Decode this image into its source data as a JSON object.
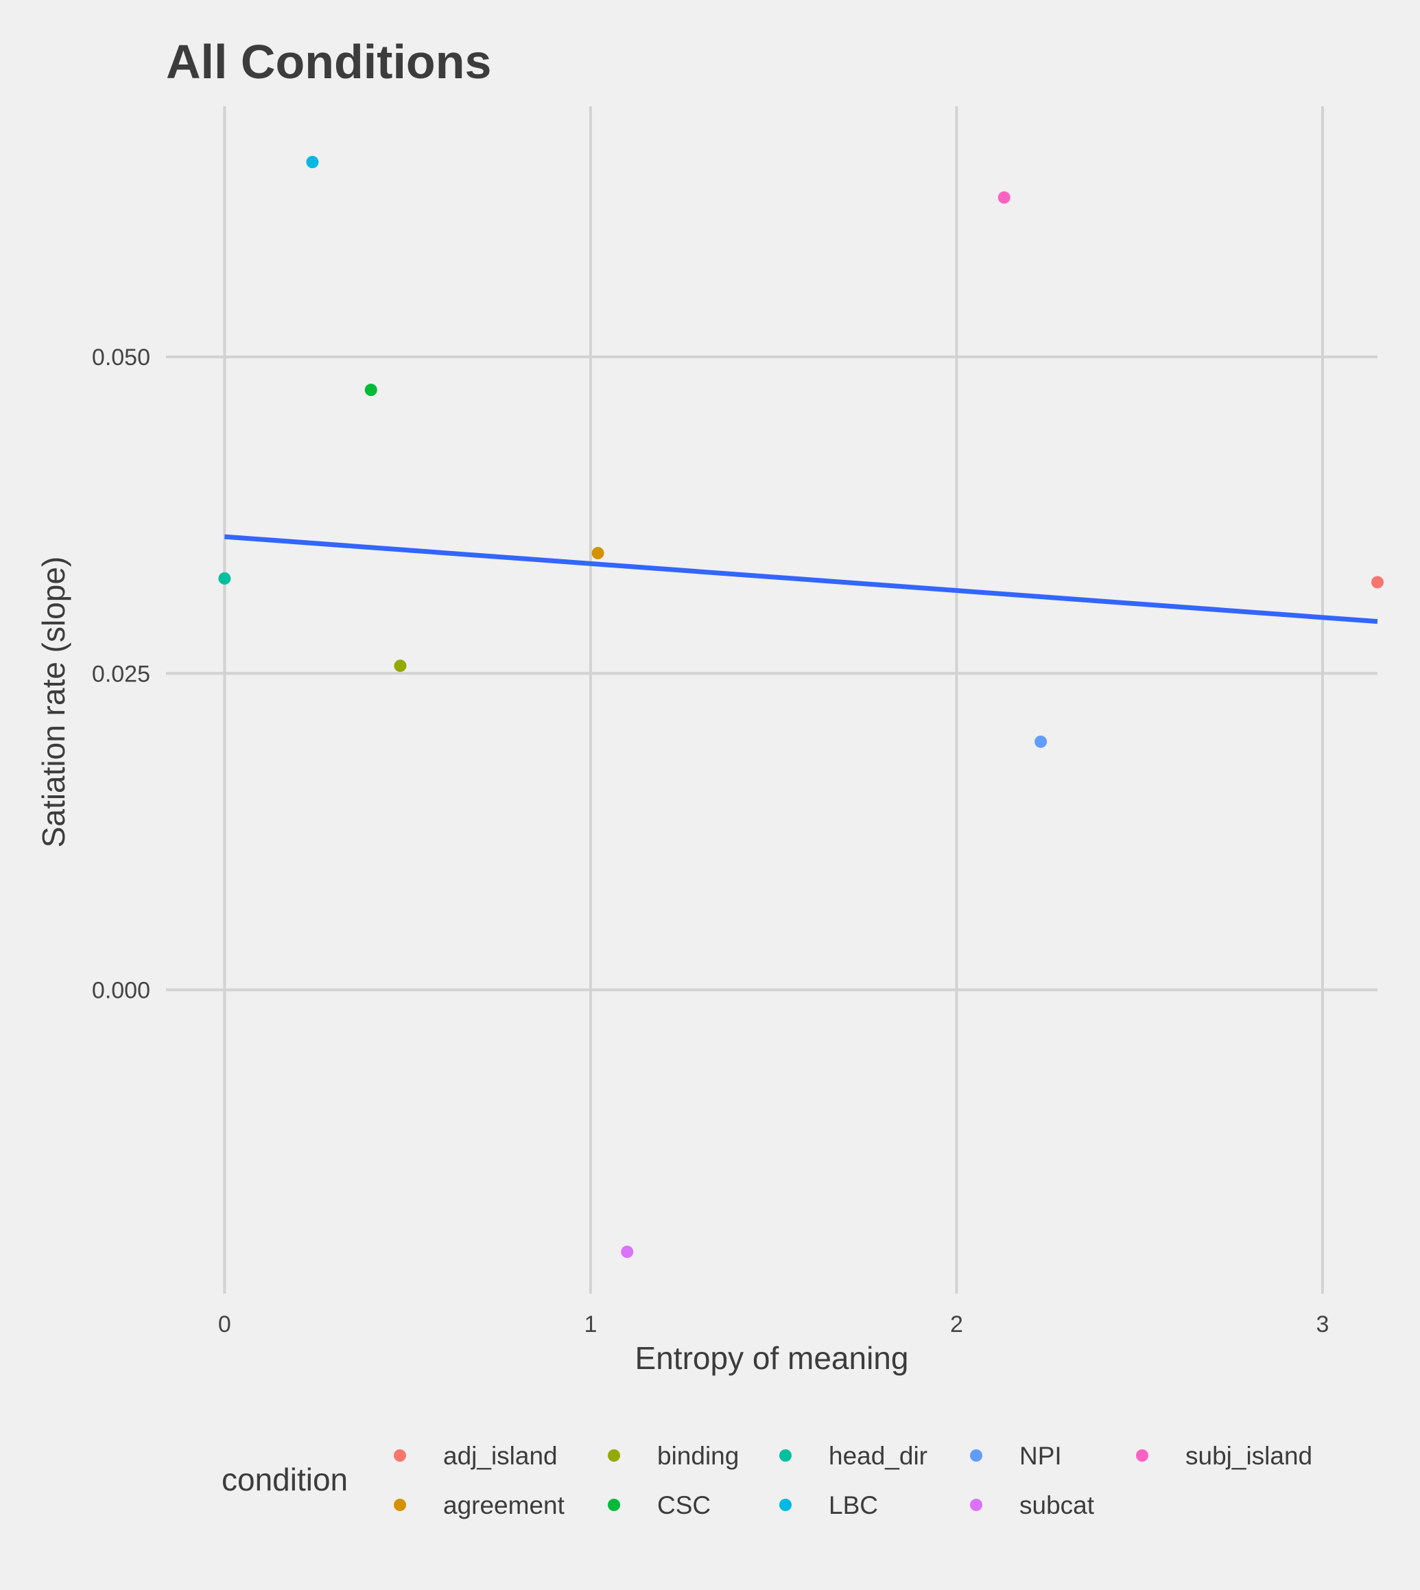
{
  "chart_data": {
    "type": "scatter",
    "title": "All Conditions",
    "xlabel": "Entropy of meaning",
    "ylabel": "Satiation rate (slope)",
    "xlim": [
      -0.16,
      3.15
    ],
    "ylim": [
      -0.024,
      0.0698
    ],
    "x_ticks": [
      {
        "value": 0,
        "label": "0"
      },
      {
        "value": 1,
        "label": "1"
      },
      {
        "value": 2,
        "label": "2"
      },
      {
        "value": 3,
        "label": "3"
      }
    ],
    "y_ticks": [
      {
        "value": 0.0,
        "label": "0.000"
      },
      {
        "value": 0.025,
        "label": "0.025"
      },
      {
        "value": 0.05,
        "label": "0.050"
      }
    ],
    "grid": true,
    "points": [
      {
        "condition": "adj_island",
        "x": 3.15,
        "y": 0.0322
      },
      {
        "condition": "agreement",
        "x": 1.02,
        "y": 0.0345
      },
      {
        "condition": "binding",
        "x": 0.48,
        "y": 0.0256
      },
      {
        "condition": "CSC",
        "x": 0.4,
        "y": 0.0474
      },
      {
        "condition": "head_dir",
        "x": 0.0,
        "y": 0.0325
      },
      {
        "condition": "LBC",
        "x": 0.24,
        "y": 0.0654
      },
      {
        "condition": "NPI",
        "x": 2.23,
        "y": 0.0196
      },
      {
        "condition": "subcat",
        "x": 1.1,
        "y": -0.0207
      },
      {
        "condition": "subj_island",
        "x": 2.13,
        "y": 0.0626
      }
    ],
    "trend_line": {
      "color": "#3366ff",
      "points": [
        {
          "x": 0.0,
          "y": 0.0358
        },
        {
          "x": 3.15,
          "y": 0.0291
        }
      ]
    },
    "legend": {
      "title": "condition",
      "position": "bottom",
      "entries": [
        {
          "label": "adj_island",
          "color": "#f8766d"
        },
        {
          "label": "agreement",
          "color": "#d39200"
        },
        {
          "label": "binding",
          "color": "#93aa00"
        },
        {
          "label": "CSC",
          "color": "#00ba38"
        },
        {
          "label": "head_dir",
          "color": "#00c19f"
        },
        {
          "label": "LBC",
          "color": "#00b9e3"
        },
        {
          "label": "NPI",
          "color": "#619cff"
        },
        {
          "label": "subcat",
          "color": "#db72fb"
        },
        {
          "label": "subj_island",
          "color": "#ff61c3"
        }
      ]
    }
  }
}
